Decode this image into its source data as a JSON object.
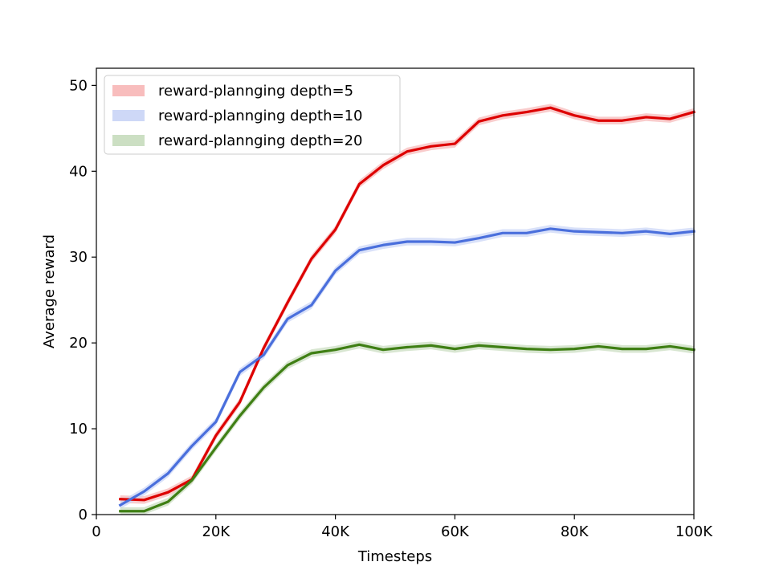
{
  "chart_data": {
    "type": "line",
    "title": "",
    "xlabel": "Timesteps",
    "ylabel": "Average reward",
    "xlim": [
      0,
      100000
    ],
    "ylim": [
      0,
      52
    ],
    "x_ticks": [
      0,
      20000,
      40000,
      60000,
      80000,
      100000
    ],
    "x_tick_labels": [
      "0",
      "20K",
      "40K",
      "60K",
      "80K",
      "100K"
    ],
    "y_ticks": [
      0,
      10,
      20,
      30,
      40,
      50
    ],
    "y_tick_labels": [
      "0",
      "10",
      "20",
      "30",
      "40",
      "50"
    ],
    "grid": false,
    "legend_position": "top-left",
    "x": [
      4000,
      8000,
      12000,
      16000,
      20000,
      24000,
      28000,
      32000,
      36000,
      40000,
      44000,
      48000,
      52000,
      56000,
      60000,
      64000,
      68000,
      72000,
      76000,
      80000,
      84000,
      88000,
      92000,
      96000,
      100000
    ],
    "series": [
      {
        "name": "reward-plannging depth=5",
        "color": "#dd0000",
        "band_color": "#f7b6b6",
        "values": [
          1.8,
          1.7,
          2.6,
          4.1,
          9.2,
          13.1,
          19.4,
          24.7,
          29.8,
          33.2,
          38.5,
          40.7,
          42.3,
          42.9,
          43.2,
          45.8,
          46.5,
          46.9,
          47.4,
          46.5,
          45.9,
          45.9,
          46.3,
          46.1,
          46.9
        ]
      },
      {
        "name": "reward-plannging depth=10",
        "color": "#4a6fdc",
        "band_color": "#c9d4f6",
        "values": [
          1.1,
          2.7,
          4.8,
          8.0,
          10.8,
          16.6,
          18.6,
          22.8,
          24.4,
          28.4,
          30.8,
          31.4,
          31.8,
          31.8,
          31.7,
          32.2,
          32.8,
          32.8,
          33.3,
          33.0,
          32.9,
          32.8,
          33.0,
          32.7,
          33.0
        ]
      },
      {
        "name": "reward-plannging depth=20",
        "color": "#3f7f14",
        "band_color": "#c7dcbd",
        "values": [
          0.4,
          0.4,
          1.5,
          4.0,
          7.8,
          11.5,
          14.8,
          17.4,
          18.8,
          19.2,
          19.8,
          19.2,
          19.5,
          19.7,
          19.3,
          19.7,
          19.5,
          19.3,
          19.2,
          19.3,
          19.6,
          19.3,
          19.3,
          19.6,
          19.2
        ]
      }
    ]
  }
}
